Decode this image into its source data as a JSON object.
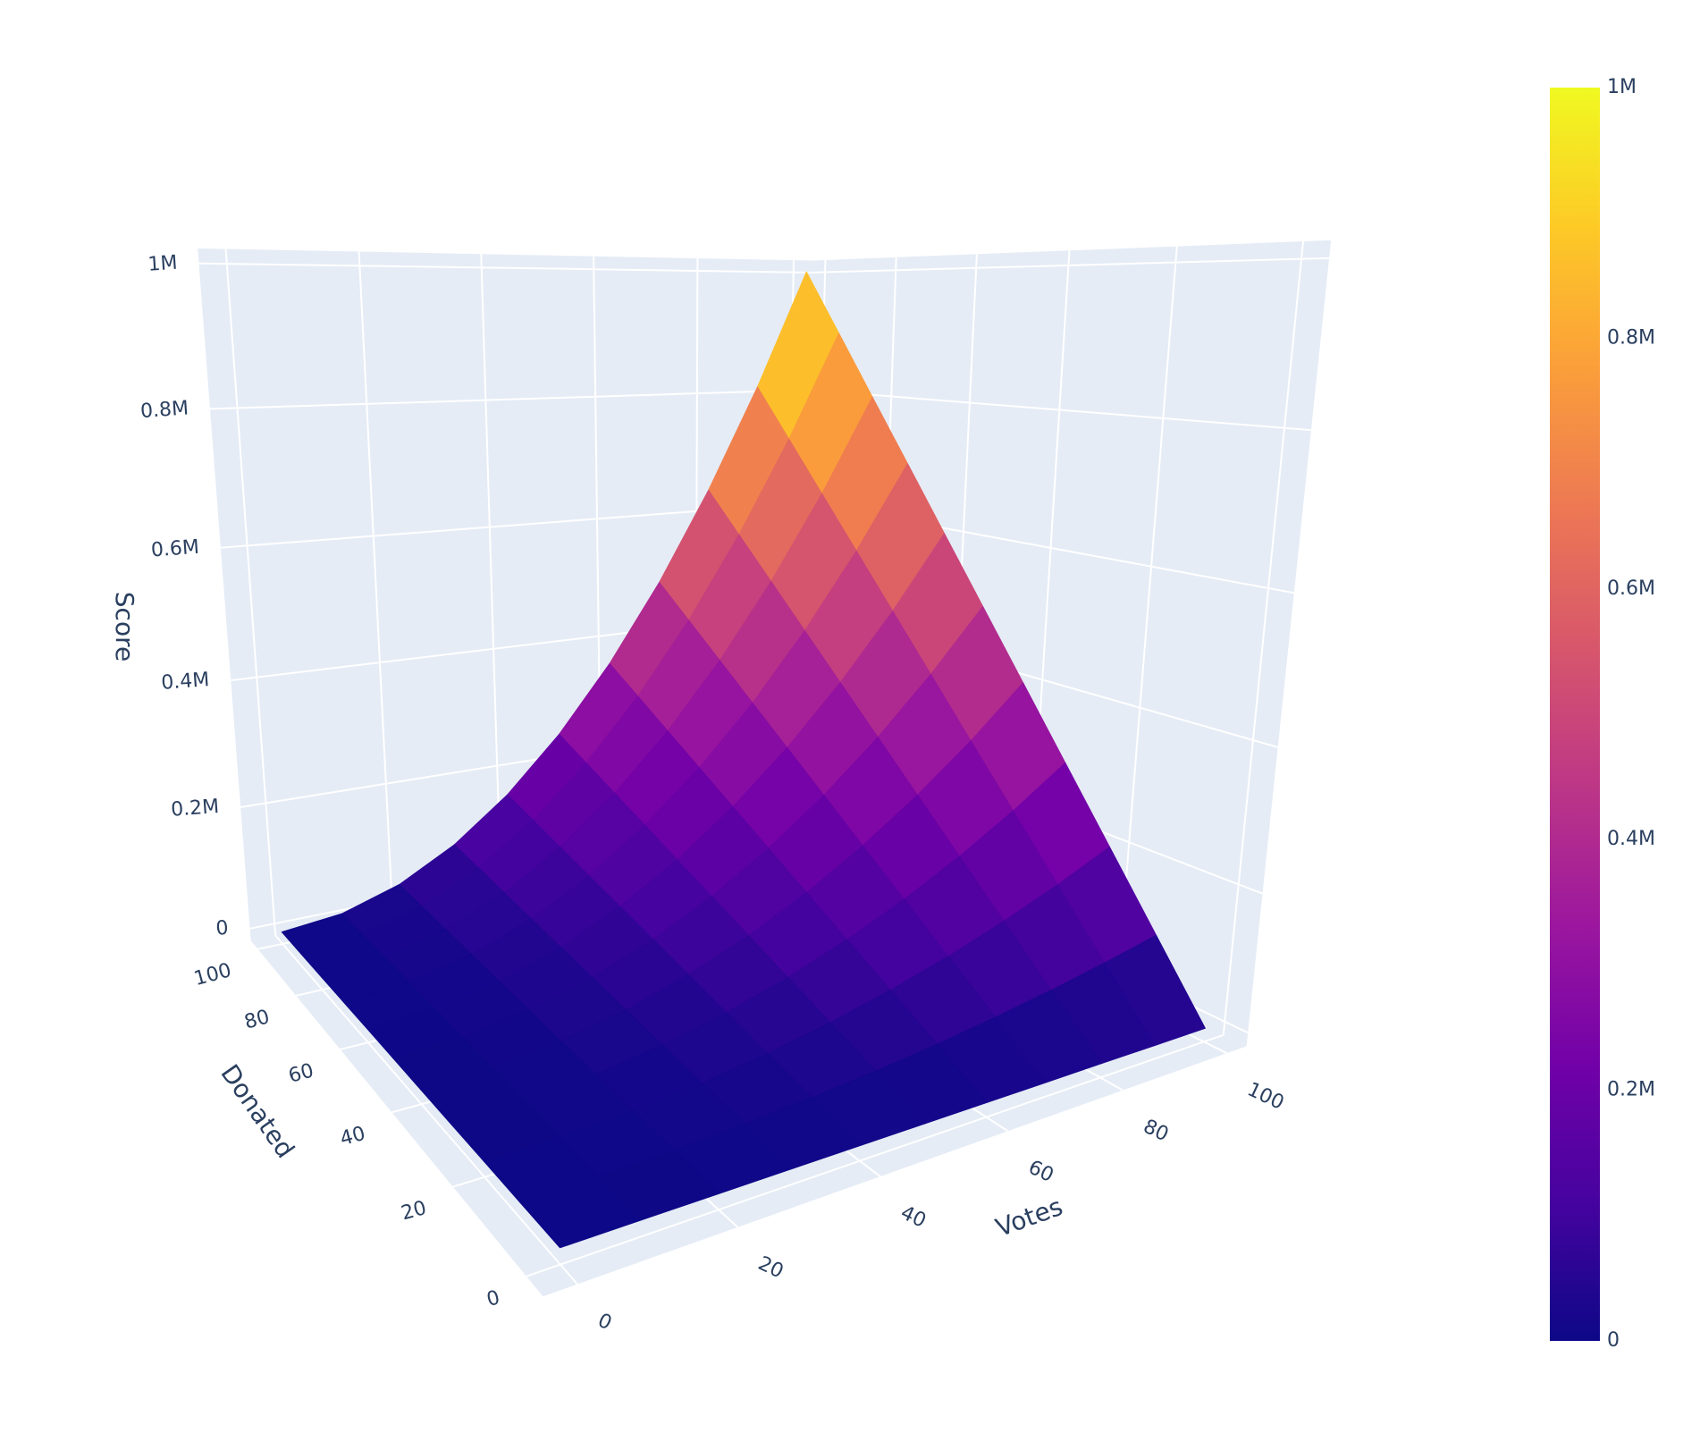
{
  "chart_data": {
    "type": "surface",
    "x": [
      0,
      10,
      20,
      30,
      40,
      50,
      60,
      70,
      80,
      90,
      100
    ],
    "y": [
      0,
      10,
      20,
      30,
      40,
      50,
      60,
      70,
      80,
      90,
      100
    ],
    "z": [
      [
        0,
        0,
        0,
        0,
        0,
        0,
        0,
        0,
        0,
        0,
        0
      ],
      [
        0,
        1000,
        4000,
        9000,
        16000,
        25000,
        36000,
        49000,
        64000,
        81000,
        100000
      ],
      [
        0,
        2000,
        8000,
        18000,
        32000,
        50000,
        72000,
        98000,
        128000,
        162000,
        200000
      ],
      [
        0,
        3000,
        12000,
        27000,
        48000,
        75000,
        108000,
        147000,
        192000,
        243000,
        300000
      ],
      [
        0,
        4000,
        16000,
        36000,
        64000,
        100000,
        144000,
        196000,
        256000,
        324000,
        400000
      ],
      [
        0,
        5000,
        20000,
        45000,
        80000,
        125000,
        180000,
        245000,
        320000,
        405000,
        500000
      ],
      [
        0,
        6000,
        24000,
        54000,
        96000,
        150000,
        216000,
        294000,
        384000,
        486000,
        600000
      ],
      [
        0,
        7000,
        28000,
        63000,
        112000,
        175000,
        252000,
        343000,
        448000,
        567000,
        700000
      ],
      [
        0,
        8000,
        32000,
        72000,
        128000,
        200000,
        288000,
        392000,
        512000,
        648000,
        800000
      ],
      [
        0,
        9000,
        36000,
        81000,
        144000,
        225000,
        324000,
        441000,
        576000,
        729000,
        900000
      ],
      [
        0,
        10000,
        40000,
        90000,
        160000,
        250000,
        360000,
        490000,
        640000,
        810000,
        1000000
      ]
    ],
    "colorscale": [
      "#0d0887",
      "#46039f",
      "#7201a8",
      "#9c179e",
      "#bd3786",
      "#d8576b",
      "#ed7953",
      "#fb9f3a",
      "#fdca26",
      "#f0f921"
    ],
    "xaxis_title": "Votes",
    "yaxis_title": "Donated",
    "zaxis_title": "Score",
    "xlim": [
      -4,
      104
    ],
    "ylim": [
      -4,
      104
    ],
    "zlim": [
      -20000,
      1020000
    ],
    "xticks": [
      0,
      20,
      40,
      60,
      80,
      100
    ],
    "yticks": [
      0,
      20,
      40,
      60,
      80,
      100
    ],
    "zticks": [
      0,
      {
        "value": 200000,
        "label": "0.2M"
      },
      {
        "value": 400000,
        "label": "0.4M"
      },
      {
        "value": 600000,
        "label": "0.6M"
      },
      {
        "value": 800000,
        "label": "0.8M"
      },
      {
        "value": 1000000,
        "label": "1M"
      }
    ],
    "wall_color": "#e5ecf6",
    "grid_color": "#ffffff",
    "colorbar": {
      "clim": [
        0,
        1000000
      ],
      "ticks": [
        0,
        {
          "value": 200000,
          "label": "0.2M"
        },
        {
          "value": 400000,
          "label": "0.4M"
        },
        {
          "value": 600000,
          "label": "0.6M"
        },
        {
          "value": 800000,
          "label": "0.8M"
        },
        {
          "value": 1000000,
          "label": "1M"
        }
      ]
    }
  }
}
